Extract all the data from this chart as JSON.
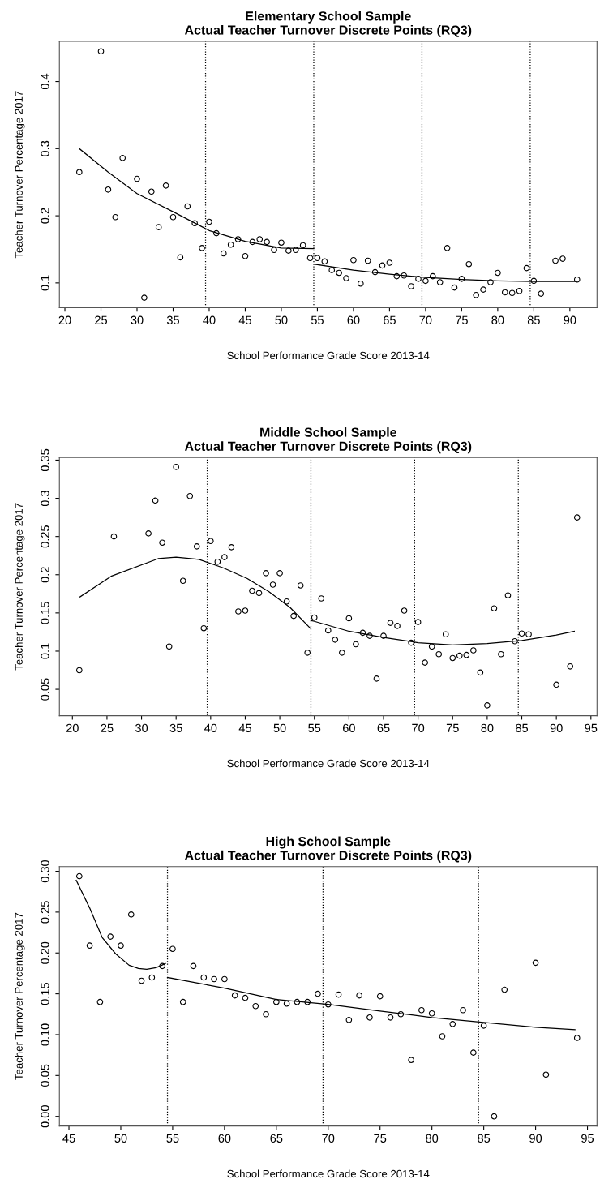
{
  "chart_data": [
    {
      "type": "scatter",
      "title": "Elementary School Sample\nActual Teacher Turnover Discrete Points (RQ3)",
      "xlabel": "School Performance Grade Score 2013-14",
      "ylabel": "Teacher Turnover Percentage 2017",
      "grid": false,
      "legend": false,
      "xlim": [
        19.24,
        93.76
      ],
      "ylim": [
        0.063,
        0.46
      ],
      "xticks": [
        20,
        25,
        30,
        35,
        40,
        45,
        50,
        55,
        60,
        65,
        70,
        75,
        80,
        85,
        90
      ],
      "yticks": [
        0.1,
        0.2,
        0.3,
        0.4
      ],
      "series": [
        {
          "marker": "circle",
          "color": "#000000",
          "x": [
            22,
            25,
            26,
            27,
            28,
            30,
            31,
            32,
            33,
            34,
            35,
            36,
            37,
            38,
            39,
            40,
            41,
            42,
            43,
            44,
            45,
            46,
            47,
            48,
            49,
            50,
            51,
            52,
            53,
            54,
            55,
            56,
            57,
            58,
            59,
            60,
            61,
            62,
            63,
            64,
            65,
            66,
            67,
            68,
            69,
            70,
            71,
            72,
            73,
            74,
            75,
            76,
            77,
            78,
            79,
            80,
            81,
            82,
            83,
            84,
            85,
            86,
            88,
            89,
            91
          ],
          "values": [
            0.265,
            0.445,
            0.239,
            0.198,
            0.286,
            0.255,
            0.078,
            0.236,
            0.183,
            0.245,
            0.198,
            0.138,
            0.214,
            0.189,
            0.152,
            0.191,
            0.174,
            0.144,
            0.157,
            0.165,
            0.14,
            0.161,
            0.165,
            0.161,
            0.149,
            0.16,
            0.148,
            0.149,
            0.156,
            0.137,
            0.137,
            0.132,
            0.119,
            0.115,
            0.107,
            0.134,
            0.099,
            0.133,
            0.116,
            0.126,
            0.13,
            0.11,
            0.111,
            0.095,
            0.106,
            0.103,
            0.11,
            0.101,
            0.152,
            0.093,
            0.106,
            0.128,
            0.082,
            0.09,
            0.101,
            0.115,
            0.086,
            0.085,
            0.088,
            0.122,
            0.103,
            0.084,
            0.133,
            0.136,
            0.105
          ]
        },
        {
          "type": "line",
          "color": "#000000",
          "line_style": "solid",
          "x": [
            22,
            26,
            30,
            35,
            40,
            45,
            50,
            54.5
          ],
          "values": [
            0.3,
            0.265,
            0.233,
            0.206,
            0.178,
            0.162,
            0.152,
            0.151
          ]
        },
        {
          "type": "line",
          "color": "#000000",
          "line_style": "solid",
          "x": [
            54.5,
            60,
            65,
            70,
            75,
            80,
            85,
            91
          ],
          "values": [
            0.128,
            0.119,
            0.113,
            0.108,
            0.105,
            0.103,
            0.102,
            0.102
          ]
        }
      ],
      "ref_lines": [
        {
          "axis": "x",
          "value": 39.5,
          "color": "#000000",
          "line_style": "dotted"
        },
        {
          "axis": "x",
          "value": 54.5,
          "color": "#000000",
          "line_style": "dotted"
        },
        {
          "axis": "x",
          "value": 69.5,
          "color": "#000000",
          "line_style": "dotted"
        },
        {
          "axis": "x",
          "value": 84.5,
          "color": "#000000",
          "line_style": "dotted"
        }
      ]
    },
    {
      "type": "scatter",
      "title": "Middle School Sample\nActual Teacher Turnover Discrete Points (RQ3)",
      "xlabel": "School Performance Grade Score 2013-14",
      "ylabel": "Teacher Turnover Percentage 2017",
      "grid": false,
      "legend": false,
      "xlim": [
        18.12,
        95.88
      ],
      "ylim": [
        0.0155,
        0.3535
      ],
      "xticks": [
        20,
        25,
        30,
        35,
        40,
        45,
        50,
        55,
        60,
        65,
        70,
        75,
        80,
        85,
        90,
        95
      ],
      "yticks": [
        0.05,
        0.1,
        0.15,
        0.2,
        0.25,
        0.3,
        0.35
      ],
      "series": [
        {
          "marker": "circle",
          "color": "#000000",
          "x": [
            21,
            26,
            31,
            32,
            33,
            34,
            35,
            36,
            37,
            38,
            39,
            40,
            41,
            42,
            43,
            44,
            45,
            46,
            47,
            48,
            49,
            50,
            51,
            52,
            53,
            54,
            55,
            56,
            57,
            58,
            59,
            60,
            61,
            62,
            63,
            64,
            65,
            66,
            67,
            68,
            69,
            70,
            71,
            72,
            73,
            74,
            75,
            76,
            77,
            78,
            79,
            80,
            81,
            82,
            83,
            84,
            85,
            86,
            90,
            92,
            93
          ],
          "values": [
            0.075,
            0.25,
            0.254,
            0.297,
            0.242,
            0.106,
            0.341,
            0.192,
            0.303,
            0.237,
            0.13,
            0.244,
            0.217,
            0.223,
            0.236,
            0.152,
            0.153,
            0.179,
            0.176,
            0.202,
            0.187,
            0.202,
            0.165,
            0.146,
            0.186,
            0.098,
            0.144,
            0.169,
            0.127,
            0.115,
            0.098,
            0.143,
            0.109,
            0.124,
            0.12,
            0.064,
            0.12,
            0.137,
            0.133,
            0.153,
            0.111,
            0.138,
            0.085,
            0.106,
            0.096,
            0.122,
            0.091,
            0.094,
            0.095,
            0.101,
            0.072,
            0.029,
            0.156,
            0.096,
            0.173,
            0.113,
            0.123,
            0.122,
            0.056,
            0.08,
            0.275
          ]
        },
        {
          "type": "line",
          "color": "#000000",
          "line_style": "solid",
          "x": [
            21.1,
            25.6,
            32.4,
            35,
            38.3,
            41.8,
            45.3,
            48.4,
            51.5,
            54.4
          ],
          "values": [
            0.171,
            0.198,
            0.221,
            0.223,
            0.22,
            0.209,
            0.195,
            0.178,
            0.157,
            0.13
          ]
        },
        {
          "type": "line",
          "color": "#000000",
          "line_style": "solid",
          "x": [
            54.5,
            55,
            60,
            65,
            70,
            75,
            80,
            85,
            90,
            92.6
          ],
          "values": [
            0.14,
            0.139,
            0.126,
            0.118,
            0.111,
            0.108,
            0.11,
            0.114,
            0.121,
            0.126
          ]
        }
      ],
      "ref_lines": [
        {
          "axis": "x",
          "value": 39.5,
          "color": "#000000",
          "line_style": "dotted"
        },
        {
          "axis": "x",
          "value": 54.5,
          "color": "#000000",
          "line_style": "dotted"
        },
        {
          "axis": "x",
          "value": 69.5,
          "color": "#000000",
          "line_style": "dotted"
        },
        {
          "axis": "x",
          "value": 84.5,
          "color": "#000000",
          "line_style": "dotted"
        }
      ]
    },
    {
      "type": "scatter",
      "title": "High School Sample\nActual Teacher Turnover Discrete Points (RQ3)",
      "xlabel": "School Performance Grade Score 2013-14",
      "ylabel": "Teacher Turnover Percentage 2017",
      "grid": false,
      "legend": false,
      "xlim": [
        44.08,
        95.92
      ],
      "ylim": [
        -0.0118,
        0.3058
      ],
      "xticks": [
        45,
        50,
        55,
        60,
        65,
        70,
        75,
        80,
        85,
        90,
        95
      ],
      "yticks": [
        {
          "value": 0,
          "label": "0.00"
        },
        0.05,
        {
          "value": 0.1,
          "label": "0.10"
        },
        0.15,
        {
          "value": 0.2,
          "label": "0.20"
        },
        0.25,
        {
          "value": 0.3,
          "label": "0.30"
        }
      ],
      "series": [
        {
          "marker": "circle",
          "color": "#000000",
          "x": [
            46,
            47,
            48,
            49,
            50,
            51,
            52,
            53,
            54,
            55,
            56,
            57,
            58,
            59,
            60,
            61,
            62,
            63,
            64,
            65,
            66,
            67,
            68,
            69,
            70,
            71,
            72,
            73,
            74,
            75,
            76,
            77,
            78,
            79,
            80,
            81,
            82,
            83,
            84,
            85,
            86,
            87,
            90,
            91,
            94
          ],
          "values": [
            0.294,
            0.209,
            0.14,
            0.22,
            0.209,
            0.247,
            0.166,
            0.17,
            0.184,
            0.205,
            0.14,
            0.184,
            0.17,
            0.168,
            0.168,
            0.148,
            0.145,
            0.135,
            0.125,
            0.14,
            0.138,
            0.14,
            0.14,
            0.15,
            0.137,
            0.149,
            0.118,
            0.148,
            0.121,
            0.147,
            0.121,
            0.125,
            0.069,
            0.13,
            0.126,
            0.098,
            0.113,
            0.13,
            0.078,
            0.111,
            0.0,
            0.155,
            0.188,
            0.051,
            0.096
          ]
        },
        {
          "type": "line",
          "color": "#000000",
          "line_style": "solid",
          "x": [
            45.7,
            47,
            48.2,
            49.5,
            50.8,
            51.7,
            52.5,
            53.4,
            54.3
          ],
          "values": [
            0.289,
            0.255,
            0.219,
            0.199,
            0.185,
            0.181,
            0.18,
            0.182,
            0.187
          ]
        },
        {
          "type": "line",
          "color": "#000000",
          "line_style": "solid",
          "x": [
            54.5,
            60,
            65,
            70,
            75,
            80,
            85,
            90,
            93.8
          ],
          "values": [
            0.17,
            0.157,
            0.143,
            0.137,
            0.129,
            0.121,
            0.115,
            0.109,
            0.106
          ]
        }
      ],
      "ref_lines": [
        {
          "axis": "x",
          "value": 54.5,
          "color": "#000000",
          "line_style": "dotted"
        },
        {
          "axis": "x",
          "value": 69.5,
          "color": "#000000",
          "line_style": "dotted"
        },
        {
          "axis": "x",
          "value": 84.5,
          "color": "#000000",
          "line_style": "dotted"
        }
      ]
    }
  ]
}
